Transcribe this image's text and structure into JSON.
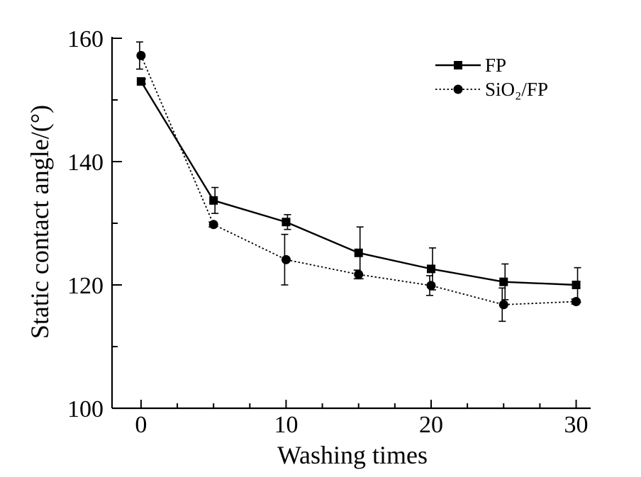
{
  "chart_data": {
    "type": "line",
    "title": "",
    "xlabel": "Washing times",
    "ylabel": "Static contact angle/(°)",
    "xlim": [
      -2,
      31
    ],
    "ylim": [
      100,
      160
    ],
    "x_ticks": [
      0,
      10,
      20,
      30
    ],
    "y_ticks": [
      100,
      120,
      140,
      160
    ],
    "x_minor_step": 2.5,
    "y_minor_step": 10,
    "grid": false,
    "legend_position": "top-right",
    "x": [
      0,
      5,
      10,
      15,
      20,
      25,
      30
    ],
    "series": [
      {
        "name": "FP",
        "marker": "square",
        "line_style": "solid",
        "color": "#000000",
        "values": [
          153,
          133.7,
          130.2,
          125.2,
          122.6,
          120.5,
          120
        ],
        "errors": [
          0.4,
          2.1,
          1.2,
          4.2,
          3.4,
          2.9,
          2.8
        ]
      },
      {
        "name": "SiO₂/FP",
        "marker": "circle",
        "line_style": "dotted",
        "color": "#000000",
        "values": [
          157.2,
          129.8,
          124.1,
          121.7,
          119.9,
          116.8,
          117.3
        ],
        "errors": [
          2.2,
          0.4,
          4.1,
          0.7,
          1.6,
          2.7,
          0.4
        ]
      }
    ]
  }
}
